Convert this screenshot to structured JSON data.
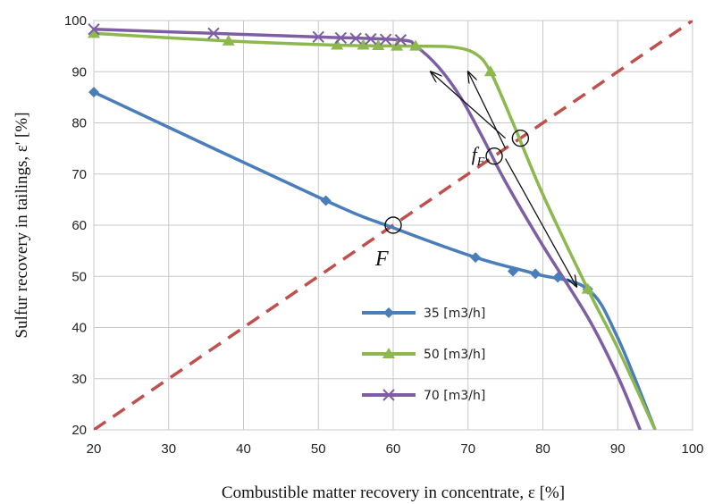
{
  "chart_data": {
    "type": "line",
    "xlabel": "Combustible matter recovery in concentrate, ε [%]",
    "ylabel": "Sulfur recovery in tailings, ε' [%]",
    "xlim": [
      20,
      100
    ],
    "ylim": [
      20,
      100
    ],
    "xticks": [
      20,
      30,
      40,
      50,
      60,
      70,
      80,
      90,
      100
    ],
    "yticks": [
      20,
      30,
      40,
      50,
      60,
      70,
      80,
      90,
      100
    ],
    "grid": true,
    "legend_position": "center-bottom",
    "series": [
      {
        "name": "35 [m3/h]",
        "color": "#4a7ebb",
        "marker": "diamond",
        "points": [
          [
            20,
            86
          ],
          [
            51,
            64.8
          ],
          [
            71,
            53.7
          ],
          [
            76,
            51
          ],
          [
            79,
            50.5
          ],
          [
            82,
            49.8
          ],
          [
            86,
            47.5
          ]
        ],
        "fit_line": [
          [
            20,
            86
          ],
          [
            51,
            64.8
          ],
          [
            60,
            59.5
          ],
          [
            71,
            53.7
          ],
          [
            79,
            50.5
          ],
          [
            86,
            47.5
          ],
          [
            90,
            38
          ],
          [
            95,
            20
          ]
        ]
      },
      {
        "name": "50 [m3/h]",
        "color": "#8db84d",
        "marker": "triangle",
        "points": [
          [
            20,
            97.5
          ],
          [
            38,
            96
          ],
          [
            52.5,
            95.2
          ],
          [
            56,
            95.2
          ],
          [
            58,
            95.1
          ],
          [
            60.5,
            95
          ],
          [
            63,
            95
          ],
          [
            73,
            90
          ],
          [
            86,
            47.5
          ]
        ],
        "fit_line": [
          [
            20,
            97.5
          ],
          [
            38,
            96
          ],
          [
            52.5,
            95.2
          ],
          [
            63,
            95
          ],
          [
            68,
            94.8
          ],
          [
            71,
            93.5
          ],
          [
            73,
            90
          ],
          [
            76,
            80
          ],
          [
            80,
            66
          ],
          [
            86,
            47.5
          ],
          [
            90,
            36
          ],
          [
            95,
            20
          ]
        ]
      },
      {
        "name": "70 [m3/h]",
        "color": "#7d5ea4",
        "marker": "x",
        "points": [
          [
            20,
            98.3
          ],
          [
            36,
            97.5
          ],
          [
            50,
            96.8
          ],
          [
            53,
            96.6
          ],
          [
            55,
            96.5
          ],
          [
            57,
            96.4
          ],
          [
            59,
            96.3
          ],
          [
            61,
            96.2
          ]
        ],
        "fit_line": [
          [
            20,
            98.3
          ],
          [
            36,
            97.5
          ],
          [
            50,
            96.8
          ],
          [
            61,
            96.2
          ],
          [
            63,
            95
          ],
          [
            66,
            91
          ],
          [
            69,
            85
          ],
          [
            72,
            77
          ],
          [
            75,
            68.5
          ],
          [
            80,
            56
          ],
          [
            86,
            42
          ],
          [
            90,
            30.5
          ],
          [
            93,
            20
          ]
        ]
      }
    ],
    "reference_line": {
      "style": "dashed",
      "color": "#c0504d",
      "points": [
        [
          20,
          20
        ],
        [
          100,
          100
        ]
      ]
    },
    "annotations": [
      {
        "label": "F",
        "point": [
          60,
          60
        ]
      },
      {
        "label": "f",
        "subscript": "F",
        "text_at": [
          75,
          74
        ]
      }
    ],
    "marked_points": [
      [
        60,
        60
      ],
      [
        73.5,
        73.5
      ],
      [
        77,
        77
      ]
    ],
    "arrows": [
      {
        "from": [
          75,
          77
        ],
        "to": [
          65,
          90
        ]
      },
      {
        "from": [
          75,
          75
        ],
        "to": [
          70,
          90
        ]
      },
      {
        "from": [
          75,
          73
        ],
        "to": [
          84.5,
          48
        ]
      }
    ]
  }
}
